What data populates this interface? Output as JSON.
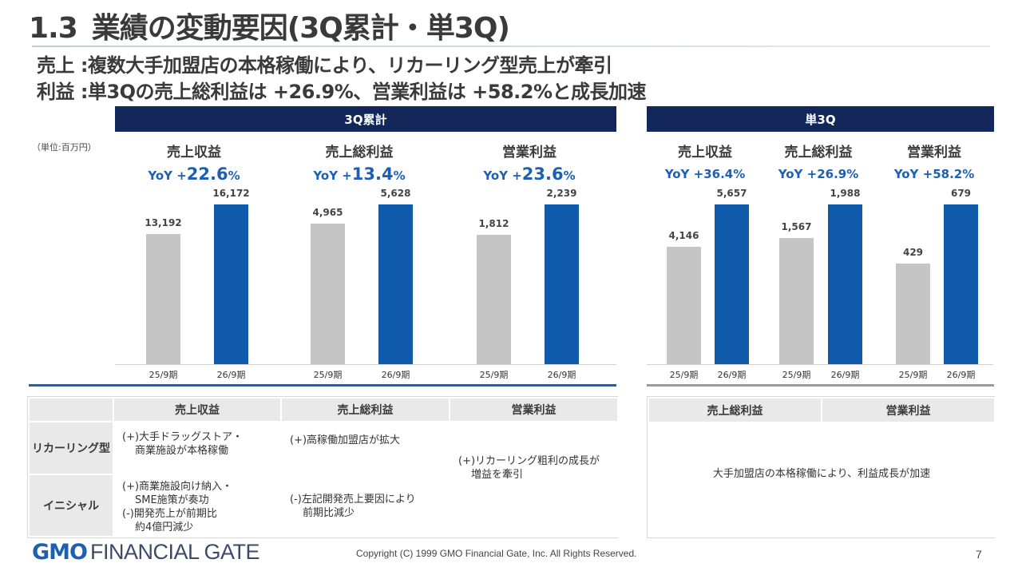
{
  "header": {
    "number": "1.3",
    "title": "業績の変動要因(3Q累計・単3Q)",
    "line1": "売上 :複数大手加盟店の本格稼働により、リカーリング型売上が牽引",
    "line2": "利益 :単3Qの売上総利益は +26.9%、営業利益は +58.2%と成長加速",
    "unit": "（単位:百万円）"
  },
  "panels": {
    "cumulative_title": "3Q累計",
    "single_title": "単3Q"
  },
  "chart_data": [
    {
      "type": "bar",
      "panel": "3Q累計",
      "categories": [
        "25/9期",
        "26/9期"
      ],
      "series": [
        {
          "name": "売上収益",
          "values": [
            13192,
            16172
          ],
          "yoy_prefix": "YoY +",
          "yoy_value": "22.6",
          "yoy_unit": "%"
        },
        {
          "name": "売上総利益",
          "values": [
            4965,
            5628
          ],
          "yoy_prefix": "YoY +",
          "yoy_value": "13.4",
          "yoy_unit": "%"
        },
        {
          "name": "営業利益",
          "values": [
            1812,
            2239
          ],
          "yoy_prefix": "YoY +",
          "yoy_value": "23.6",
          "yoy_unit": "%"
        }
      ],
      "value_labels": [
        [
          "13,192",
          "16,172"
        ],
        [
          "4,965",
          "5,628"
        ],
        [
          "1,812",
          "2,239"
        ]
      ]
    },
    {
      "type": "bar",
      "panel": "単3Q",
      "categories": [
        "25/9期",
        "26/9期"
      ],
      "series": [
        {
          "name": "売上収益",
          "values": [
            4146,
            5657
          ],
          "yoy": "YoY +36.4%"
        },
        {
          "name": "売上総利益",
          "values": [
            1567,
            1988
          ],
          "yoy": "YoY +26.9%"
        },
        {
          "name": "営業利益",
          "values": [
            429,
            679
          ],
          "yoy": "YoY +58.2%"
        }
      ],
      "value_labels": [
        [
          "4,146",
          "5,657"
        ],
        [
          "1,567",
          "1,988"
        ],
        [
          "429",
          "679"
        ]
      ]
    }
  ],
  "table_left": {
    "headers": [
      "売上収益",
      "売上総利益",
      "営業利益"
    ],
    "row1_label": "リカーリング型",
    "row2_label": "イニシャル",
    "r1_sales_l1": "(+)大手ドラッグストア・",
    "r1_sales_l2": "商業施設が本格稼働",
    "r1_gross": "(+)高稼働加盟店が拡大",
    "op_l1": "(+)リカーリング粗利の成長が",
    "op_l2": "増益を牽引",
    "r2_sales_l1": "(+)商業施設向け納入・",
    "r2_sales_l2": "SME施策が奏功",
    "r2_sales_l3": "(-)開発売上が前期比",
    "r2_sales_l4": "約4億円減少",
    "r2_gross_l1": "(-)左記開発売上要因により",
    "r2_gross_l2": "前期比減少"
  },
  "table_right": {
    "headers": [
      "売上総利益",
      "営業利益"
    ],
    "body": "大手加盟店の本格稼働により、利益成長が加速"
  },
  "footer": {
    "logo_gmo": "GMO",
    "logo_rest": "FINANCIAL GATE",
    "copyright": "Copyright (C) 1999 GMO Financial Gate, Inc. All Rights Reserved.",
    "page": "7"
  },
  "colors": {
    "prior_bar": "#c5c5c5",
    "current_bar": "#0f5aab",
    "accent": "#1d5fb3",
    "header_bg": "#14275a"
  }
}
